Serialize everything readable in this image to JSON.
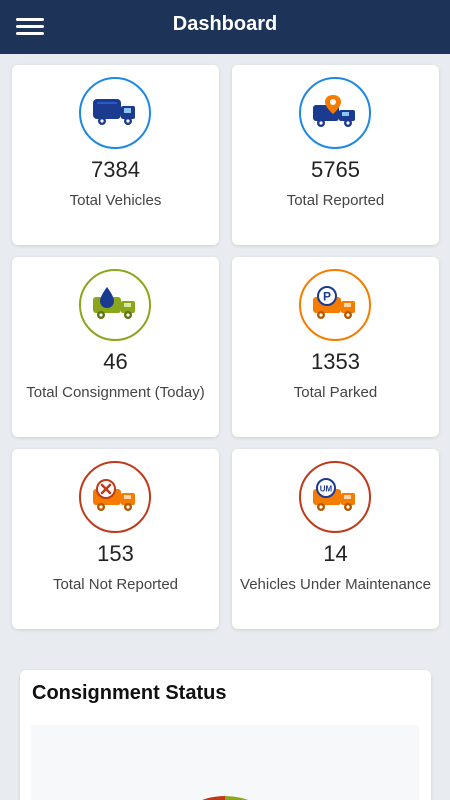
{
  "header": {
    "title": "Dashboard"
  },
  "cards": [
    {
      "value": "7384",
      "label": "Total Vehicles",
      "color": "#1e88e5"
    },
    {
      "value": "5765",
      "label": "Total Reported",
      "color": "#1e88e5"
    },
    {
      "value": "46",
      "label": "Total Consignment (Today)",
      "color": "#8aa61a"
    },
    {
      "value": "1353",
      "label": "Total Parked",
      "color": "#f57c00"
    },
    {
      "value": "153",
      "label": "Total Not Reported",
      "color": "#c0391b"
    },
    {
      "value": "14",
      "label": "Vehicles Under Maintenance",
      "color": "#c0391b"
    }
  ],
  "icons": {
    "vehicles": "truck-icon",
    "reported": "truck-location-pin-icon",
    "consignment": "truck-drop-icon",
    "parked": "truck-parking-icon",
    "not_reported": "truck-cross-icon",
    "maintenance": "truck-maintenance-icon",
    "maintenance_badge": "UM",
    "parking_badge": "P"
  },
  "consignment_status": {
    "title": "Consignment Status"
  }
}
